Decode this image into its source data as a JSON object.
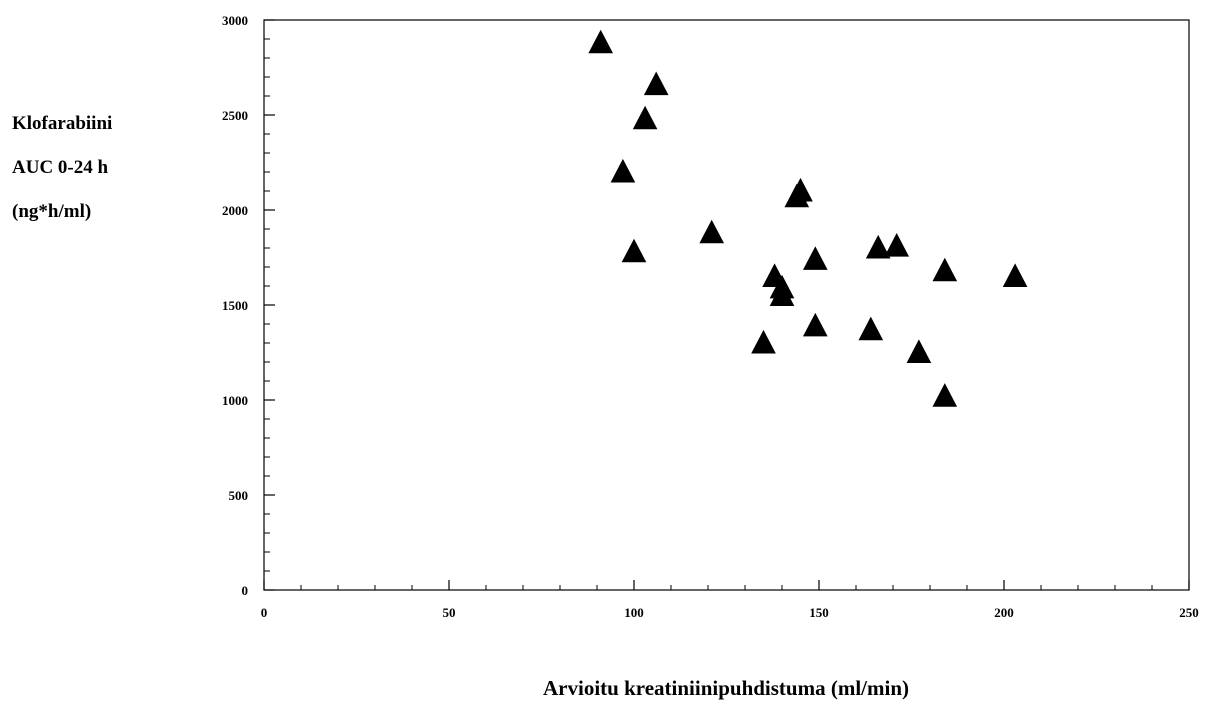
{
  "chart_data": {
    "type": "scatter",
    "title": "",
    "ylabel_lines": [
      "Klofarabiini",
      "AUC 0-24 h",
      "(ng*h/ml)"
    ],
    "xlabel": "Arvioitu kreatiniinipuhdistuma (ml/min)",
    "xlim": [
      0,
      250
    ],
    "ylim": [
      0,
      3000
    ],
    "x_ticks": [
      0,
      50,
      100,
      150,
      200,
      250
    ],
    "y_ticks": [
      0,
      500,
      1000,
      1500,
      2000,
      2500,
      3000
    ],
    "x_minor_step": 10,
    "y_minor_step": 100,
    "marker": "filled-triangle",
    "marker_color": "#000000",
    "grid": false,
    "points": [
      {
        "x": 91,
        "y": 2880
      },
      {
        "x": 106,
        "y": 2660
      },
      {
        "x": 103,
        "y": 2480
      },
      {
        "x": 97,
        "y": 2200
      },
      {
        "x": 100,
        "y": 1780
      },
      {
        "x": 121,
        "y": 1880
      },
      {
        "x": 145,
        "y": 2100
      },
      {
        "x": 144,
        "y": 2070
      },
      {
        "x": 149,
        "y": 1740
      },
      {
        "x": 138,
        "y": 1650
      },
      {
        "x": 140,
        "y": 1590
      },
      {
        "x": 140,
        "y": 1550
      },
      {
        "x": 135,
        "y": 1300
      },
      {
        "x": 149,
        "y": 1390
      },
      {
        "x": 166,
        "y": 1800
      },
      {
        "x": 171,
        "y": 1810
      },
      {
        "x": 164,
        "y": 1370
      },
      {
        "x": 177,
        "y": 1250
      },
      {
        "x": 184,
        "y": 1680
      },
      {
        "x": 184,
        "y": 1020
      },
      {
        "x": 203,
        "y": 1650
      }
    ]
  }
}
